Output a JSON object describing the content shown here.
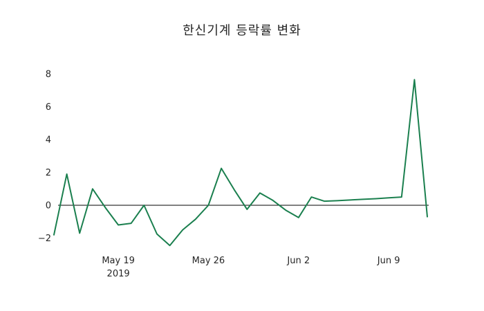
{
  "title": "한신기계 등락률 변화",
  "chart_data": {
    "type": "line",
    "title": "한신기계 등락률 변화",
    "x_dates": [
      "2019-05-14",
      "2019-05-15",
      "2019-05-16",
      "2019-05-17",
      "2019-05-18",
      "2019-05-19",
      "2019-05-20",
      "2019-05-21",
      "2019-05-22",
      "2019-05-23",
      "2019-05-24",
      "2019-05-25",
      "2019-05-26",
      "2019-05-27",
      "2019-05-28",
      "2019-05-29",
      "2019-05-30",
      "2019-05-31",
      "2019-06-01",
      "2019-06-02",
      "2019-06-03",
      "2019-06-04",
      "2019-06-05",
      "2019-06-06",
      "2019-06-07",
      "2019-06-08",
      "2019-06-09",
      "2019-06-10",
      "2019-06-11",
      "2019-06-12"
    ],
    "series": [
      {
        "name": "한신기계 등락률",
        "color": "#1a7f4e",
        "values": [
          -1.8,
          1.9,
          -1.7,
          1.0,
          -0.15,
          -1.2,
          -1.1,
          0.0,
          -1.75,
          -2.45,
          -1.5,
          -0.85,
          0.0,
          2.25,
          0.95,
          -0.25,
          0.75,
          0.3,
          -0.3,
          -0.75,
          0.5,
          0.25,
          0.28,
          0.32,
          0.36,
          0.4,
          0.45,
          0.5,
          7.65,
          -0.7
        ]
      }
    ],
    "x_ticks": [
      {
        "index": 5,
        "label": "May 19",
        "sublabel": "2019"
      },
      {
        "index": 12,
        "label": "May 26",
        "sublabel": ""
      },
      {
        "index": 19,
        "label": "Jun 2",
        "sublabel": ""
      },
      {
        "index": 26,
        "label": "Jun 9",
        "sublabel": ""
      }
    ],
    "y_ticks": [
      8,
      6,
      4,
      2,
      0,
      -2
    ],
    "ylim": [
      -3.2,
      8.6
    ],
    "xlabel": "",
    "ylabel": "",
    "grid": false,
    "zero_line": true,
    "zero_line_color": "#000000",
    "legend_position": "none",
    "background": "#ffffff"
  }
}
